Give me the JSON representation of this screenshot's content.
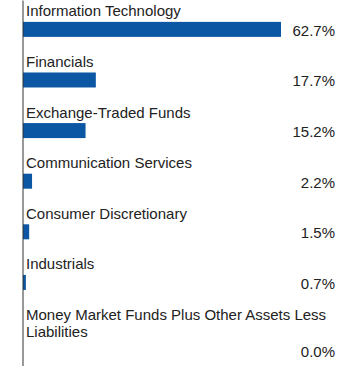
{
  "chart_data": {
    "type": "bar",
    "orientation": "horizontal",
    "categories": [
      "Information Technology",
      "Financials",
      "Exchange-Traded Funds",
      "Communication Services",
      "Consumer Discretionary",
      "Industrials",
      "Money Market Funds Plus Other Assets Less Liabilities"
    ],
    "values": [
      62.7,
      17.7,
      15.2,
      2.2,
      1.5,
      0.7,
      0.0
    ],
    "value_labels": [
      "62.7%",
      "17.7%",
      "15.2%",
      "2.2%",
      "1.5%",
      "0.7%",
      "0.0%"
    ],
    "color": "#0b57a4",
    "xlim": [
      0,
      62.7
    ],
    "grid": false,
    "data_labels": true,
    "tick_labels": "y"
  }
}
